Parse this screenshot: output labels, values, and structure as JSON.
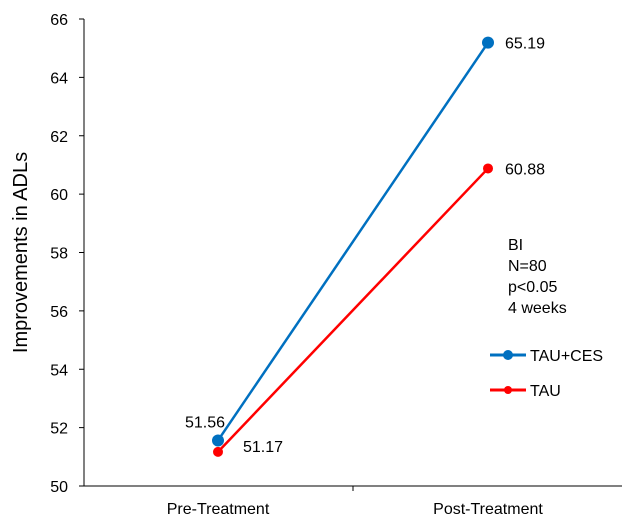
{
  "chart_data": {
    "type": "line",
    "categories": [
      "Pre-Treatment",
      "Post-Treatment"
    ],
    "series": [
      {
        "name": "TAU+CES",
        "values": [
          51.56,
          65.19
        ],
        "color": "#0070C0",
        "labels": [
          "51.56",
          "65.19"
        ]
      },
      {
        "name": "TAU",
        "values": [
          51.17,
          60.88
        ],
        "color": "#FF0000",
        "labels": [
          "51.17",
          "60.88"
        ]
      }
    ],
    "ylabel": "Improvements in ADLs",
    "ylim": [
      50,
      66
    ],
    "yticks": [
      "50",
      "52",
      "54",
      "56",
      "58",
      "60",
      "62",
      "64",
      "66"
    ],
    "annotation": [
      "BI",
      "N=80",
      "p<0.05",
      "4 weeks"
    ],
    "legend_position": "right",
    "grid": false
  }
}
